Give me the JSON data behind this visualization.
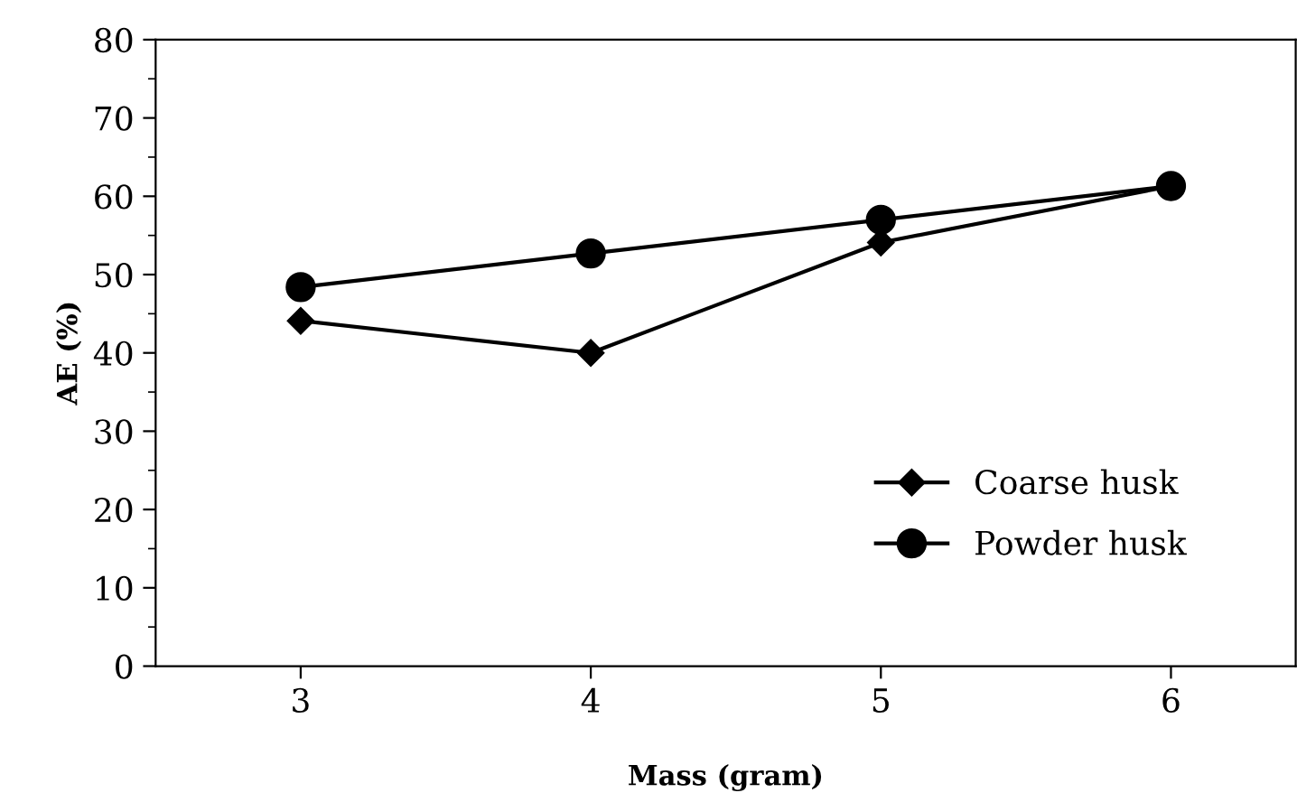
{
  "chart_data": {
    "type": "line",
    "xlabel": "Mass (gram)",
    "ylabel": "AE (%)",
    "x": [
      3,
      4,
      5,
      6
    ],
    "series": [
      {
        "name": "Coarse husk",
        "color": "#000000",
        "marker": "diamond",
        "values": [
          44.1,
          40.0,
          54.1,
          61.3
        ]
      },
      {
        "name": "Powder husk",
        "color": "#000000",
        "marker": "circle",
        "values": [
          48.4,
          52.7,
          57.0,
          61.3
        ]
      }
    ],
    "xlim": [
      2.5,
      6.43
    ],
    "xticks": [
      3,
      4,
      5,
      6
    ],
    "ylim": [
      0,
      80
    ],
    "yticks": [
      0,
      10,
      20,
      30,
      40,
      50,
      60,
      70,
      80
    ],
    "grid": false,
    "legend": "bottom right",
    "line_style": "solid"
  }
}
